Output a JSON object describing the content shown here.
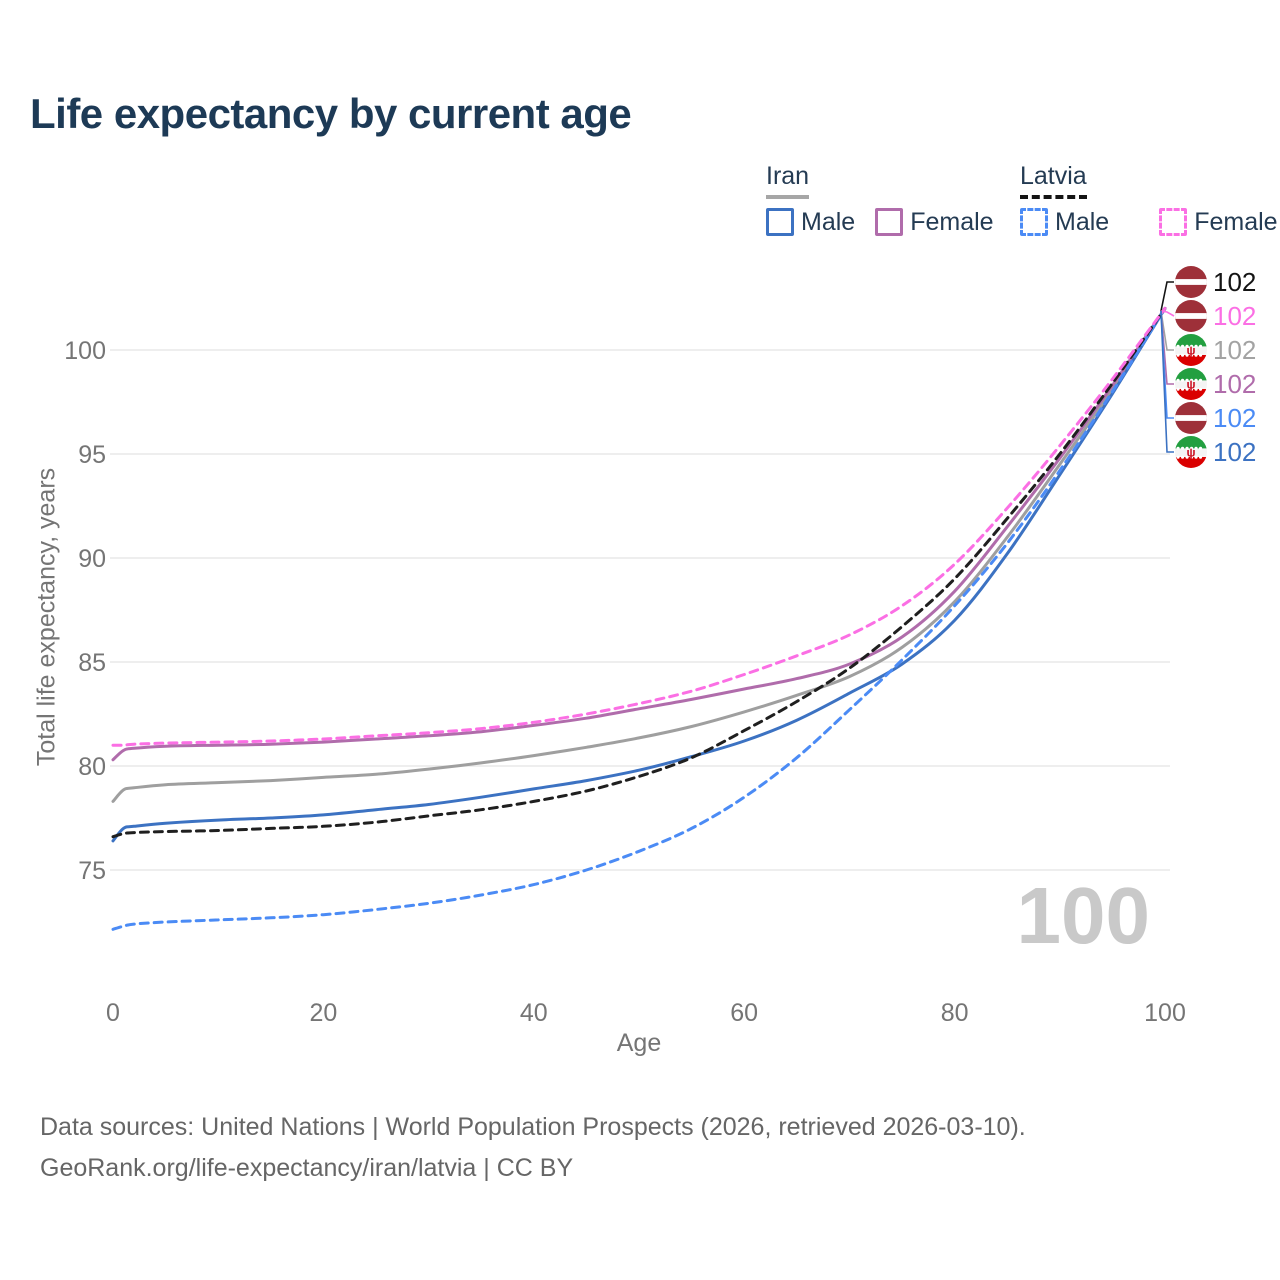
{
  "title": "Life expectancy by current age",
  "watermark": "100",
  "legend": {
    "groups": [
      {
        "country": "Iran",
        "line_style": "solid",
        "underline_color": "#a6a6a6",
        "items": [
          {
            "label": "Male",
            "color": "#3c72c2"
          },
          {
            "label": "Female",
            "color": "#b06cab"
          }
        ]
      },
      {
        "country": "Latvia",
        "line_style": "dashed",
        "underline_color": "#141414",
        "items": [
          {
            "label": "Male",
            "color": "#4b8bf5"
          },
          {
            "label": "Female",
            "color": "#fb6fe4"
          }
        ]
      }
    ]
  },
  "colors": {
    "background": "#ffffff",
    "title_text": "#1d3a56",
    "legend_text": "#243b53",
    "grid": "#e9e9e9",
    "tick_text": "#757575",
    "footer_text": "#666666",
    "watermark": "#c9c9c9",
    "latvia_flag_red": "#9e3039",
    "iran_flag_green": "#239f40",
    "iran_flag_red": "#da0000"
  },
  "footer": {
    "line1": "Data sources: United Nations | World Population Prospects (2026, retrieved 2026-03-10).",
    "line2": "GeoRank.org/life-expectancy/iran/latvia | CC BY"
  },
  "chart_data": {
    "type": "line",
    "title": "Life expectancy by current age",
    "xlabel": "Age",
    "ylabel": "Total life expectancy, years",
    "xlim": [
      0,
      100
    ],
    "ylim": [
      71.5,
      103
    ],
    "xticks": [
      0,
      20,
      40,
      60,
      80,
      100
    ],
    "yticks": [
      75,
      80,
      85,
      90,
      95,
      100
    ],
    "grid": "horizontal-only",
    "legend_position": "top-right",
    "x": [
      0,
      1,
      2,
      5,
      10,
      15,
      20,
      25,
      30,
      35,
      40,
      45,
      50,
      55,
      60,
      65,
      70,
      75,
      80,
      85,
      90,
      95,
      100
    ],
    "series": [
      {
        "name": "Iran (both sexes)",
        "country": "Iran",
        "sex": "Both",
        "color": "#9f9f9f",
        "dash": false,
        "values": [
          78.3,
          78.85,
          78.95,
          79.1,
          79.2,
          79.3,
          79.45,
          79.6,
          79.85,
          80.15,
          80.5,
          80.9,
          81.35,
          81.9,
          82.6,
          83.4,
          84.3,
          85.7,
          87.9,
          91.0,
          94.5,
          98.1,
          102
        ]
      },
      {
        "name": "Iran — Female",
        "country": "Iran",
        "sex": "Female",
        "color": "#b06cab",
        "dash": false,
        "values": [
          80.3,
          80.75,
          80.85,
          80.95,
          81.0,
          81.05,
          81.15,
          81.3,
          81.45,
          81.65,
          81.95,
          82.3,
          82.75,
          83.2,
          83.7,
          84.2,
          84.9,
          86.2,
          88.4,
          91.5,
          94.8,
          98.3,
          102
        ]
      },
      {
        "name": "Iran — Male",
        "country": "Iran",
        "sex": "Male",
        "color": "#3c72c2",
        "dash": false,
        "values": [
          76.4,
          77.0,
          77.1,
          77.25,
          77.4,
          77.5,
          77.65,
          77.9,
          78.15,
          78.5,
          78.9,
          79.3,
          79.8,
          80.45,
          81.2,
          82.2,
          83.5,
          84.9,
          87.0,
          90.2,
          94.0,
          97.9,
          102
        ]
      },
      {
        "name": "Latvia — Male",
        "country": "Latvia",
        "sex": "Male",
        "color": "#4b8bf5",
        "dash": true,
        "values": [
          72.15,
          72.3,
          72.4,
          72.5,
          72.6,
          72.7,
          72.85,
          73.1,
          73.4,
          73.8,
          74.3,
          75.0,
          75.9,
          77.0,
          78.5,
          80.4,
          82.7,
          85.1,
          87.7,
          90.7,
          94.2,
          98.0,
          102
        ]
      },
      {
        "name": "Latvia (both sexes)",
        "country": "Latvia",
        "sex": "Both",
        "color": "#1f1f1f",
        "dash": true,
        "values": [
          76.6,
          76.75,
          76.8,
          76.85,
          76.9,
          77.0,
          77.1,
          77.3,
          77.6,
          77.9,
          78.3,
          78.8,
          79.5,
          80.4,
          81.7,
          83.1,
          84.7,
          86.7,
          89.0,
          91.9,
          95.0,
          98.4,
          102
        ]
      },
      {
        "name": "Latvia — Female",
        "country": "Latvia",
        "sex": "Female",
        "color": "#fb6fe4",
        "dash": true,
        "values": [
          81.0,
          81.0,
          81.05,
          81.1,
          81.15,
          81.2,
          81.3,
          81.45,
          81.6,
          81.8,
          82.1,
          82.5,
          83.0,
          83.6,
          84.4,
          85.3,
          86.3,
          87.7,
          89.7,
          92.4,
          95.4,
          98.6,
          102
        ]
      }
    ],
    "end_labels": [
      {
        "flag": "latvia",
        "value": "102",
        "color": "#141414",
        "series": "Latvia (both sexes)"
      },
      {
        "flag": "latvia",
        "value": "102",
        "color": "#fb6fe4",
        "series": "Latvia — Female"
      },
      {
        "flag": "iran",
        "value": "102",
        "color": "#a3a3a3",
        "series": "Iran (both sexes)"
      },
      {
        "flag": "iran",
        "value": "102",
        "color": "#b06cab",
        "series": "Iran — Female"
      },
      {
        "flag": "latvia",
        "value": "102",
        "color": "#4b8bf5",
        "series": "Latvia — Male"
      },
      {
        "flag": "iran",
        "value": "102",
        "color": "#3c72c2",
        "series": "Iran — Male"
      }
    ]
  }
}
